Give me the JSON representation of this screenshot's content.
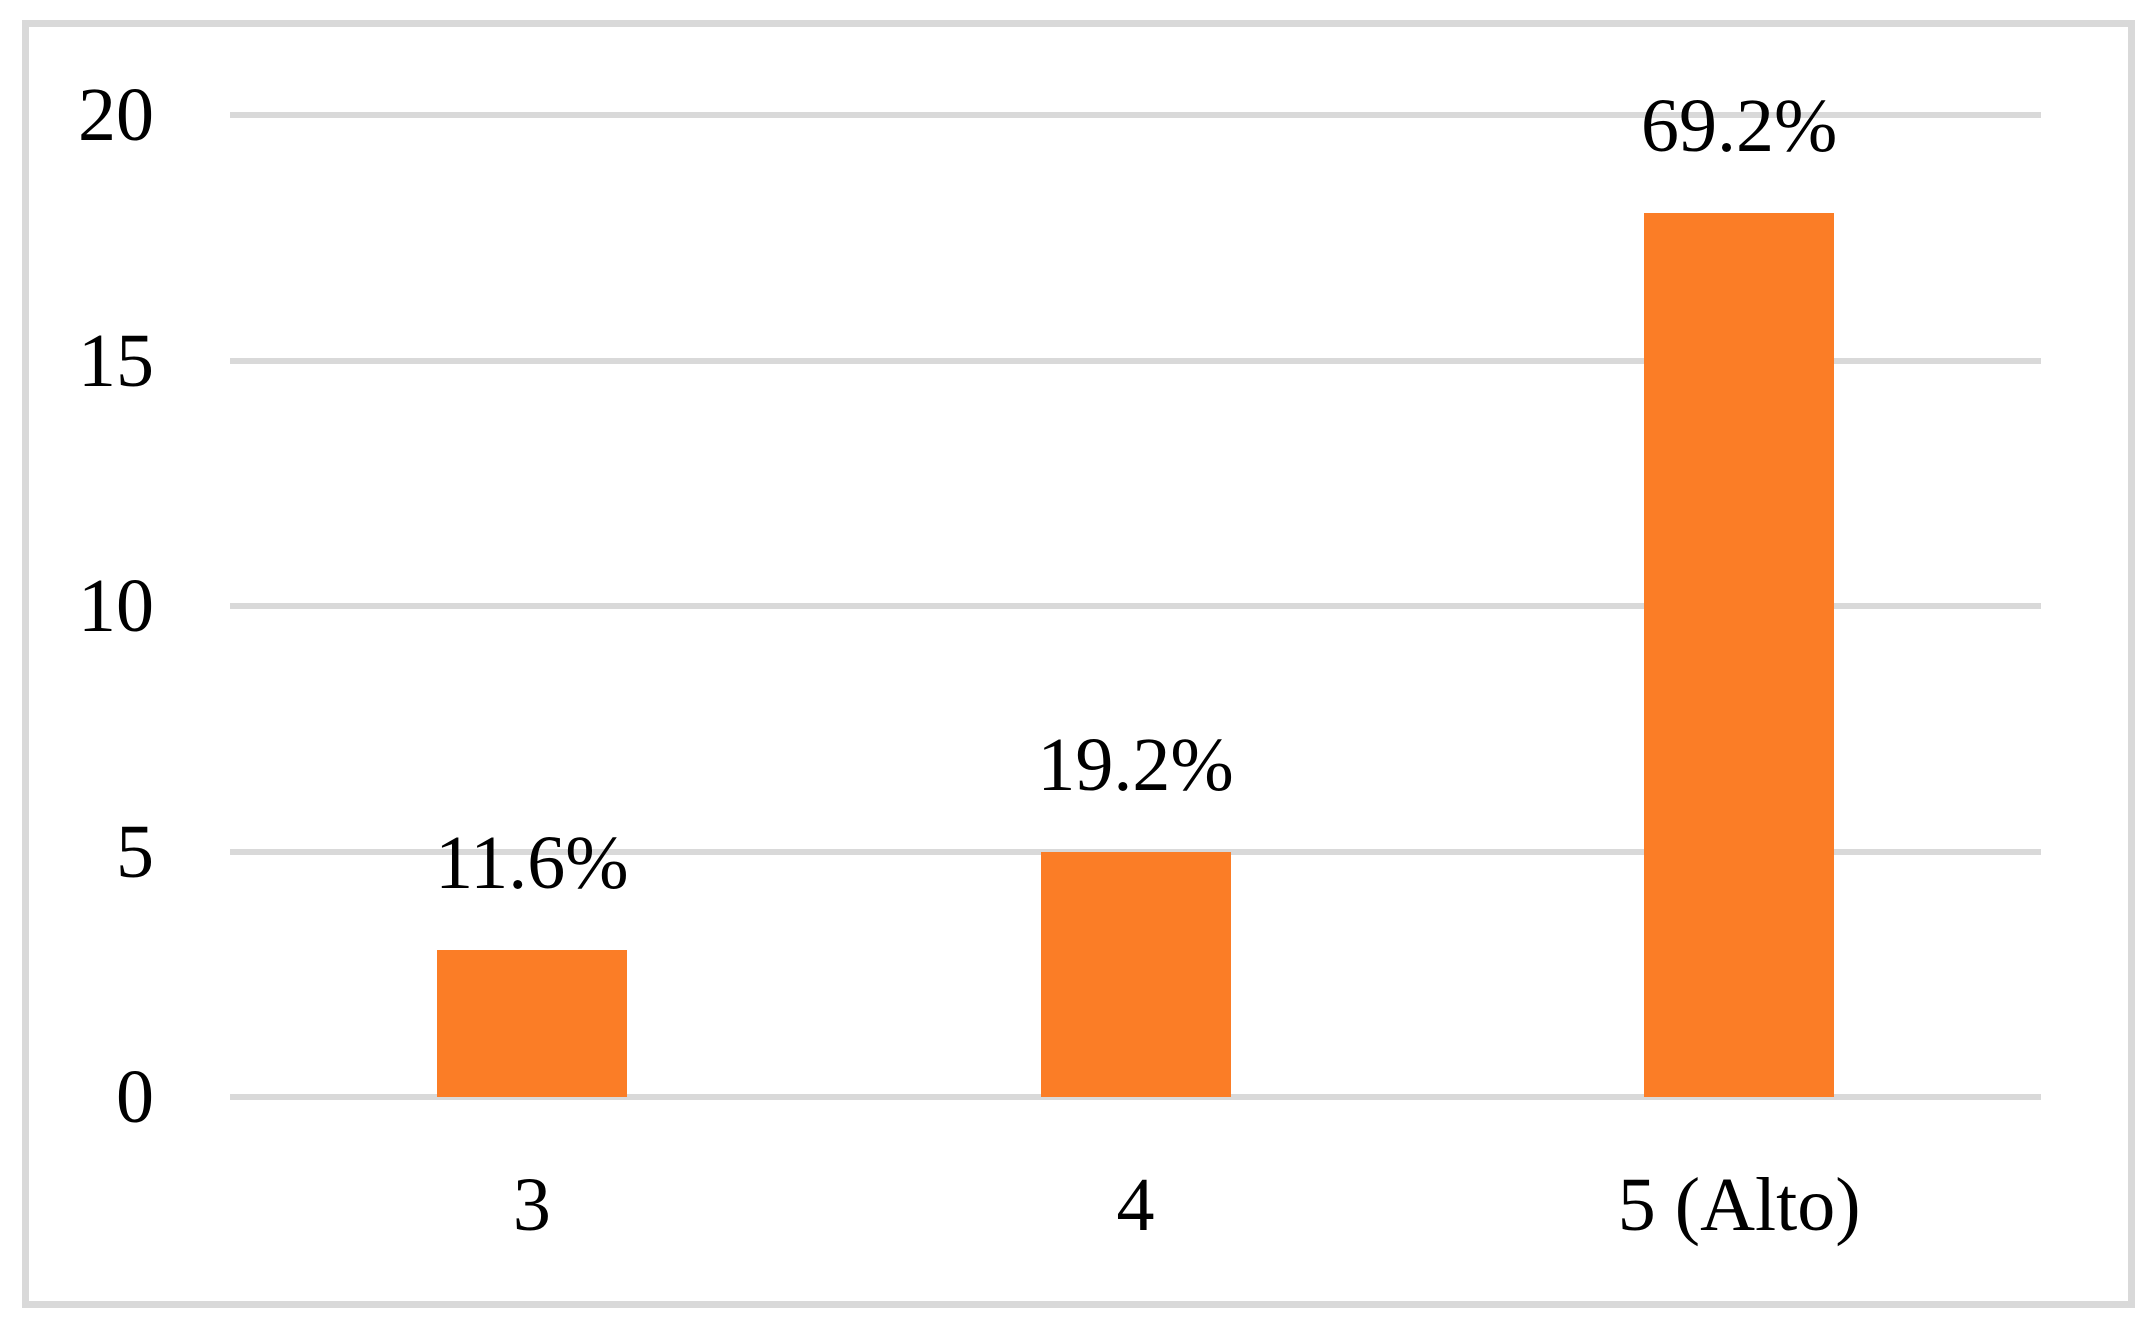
{
  "chart_data": {
    "type": "bar",
    "categories": [
      "3",
      "4",
      "5 (Alto)"
    ],
    "values": [
      3,
      5,
      18
    ],
    "data_labels": [
      "11.6%",
      "19.2%",
      "69.2%"
    ],
    "yticks": [
      0,
      5,
      10,
      15,
      20
    ],
    "ylim": [
      0,
      20
    ],
    "title": "",
    "xlabel": "",
    "ylabel": "",
    "legend": "none",
    "grid": "horizontal",
    "bar_color": "#FB7D26",
    "gridline_color": "#D9D9D9",
    "frame_border_color": "#D9D9D9",
    "label_color": "#000000"
  }
}
